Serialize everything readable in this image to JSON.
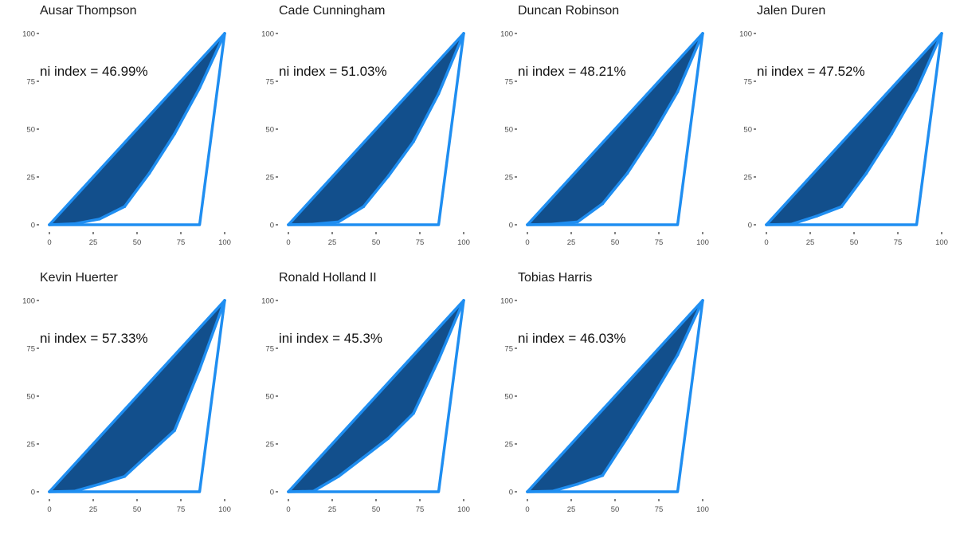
{
  "colors": {
    "line": "#1f8ef1",
    "fill": "#124f8c",
    "text": "#1a1a1a",
    "tick": "#4d4d4d"
  },
  "chart_data": [
    {
      "type": "area",
      "title": "Ausar Thompson",
      "annotation": "ni index = 46.99%",
      "x": [
        0,
        14.3,
        28.6,
        42.9,
        57.1,
        71.4,
        85.7,
        100
      ],
      "lorenz": [
        0,
        0.5,
        3,
        9.5,
        27,
        47.5,
        71.5,
        100
      ],
      "closure_x": [
        0,
        85.7,
        100
      ],
      "closure_y": [
        0,
        0,
        100
      ],
      "xlim": [
        0,
        100
      ],
      "ylim": [
        0,
        100
      ],
      "xticks": [
        "0",
        "25",
        "50",
        "75",
        "100"
      ],
      "yticks": [
        "0",
        "25",
        "50",
        "75",
        "100"
      ],
      "grid": false
    },
    {
      "type": "area",
      "title": "Cade Cunningham",
      "annotation": "ni index = 51.03%",
      "x": [
        0,
        14.3,
        28.6,
        42.9,
        57.1,
        71.4,
        85.7,
        100
      ],
      "lorenz": [
        0,
        0.3,
        1.5,
        9.5,
        25.5,
        43.5,
        68.5,
        100
      ],
      "closure_x": [
        0,
        85.7,
        100
      ],
      "closure_y": [
        0,
        0,
        100
      ],
      "xlim": [
        0,
        100
      ],
      "ylim": [
        0,
        100
      ],
      "xticks": [
        "0",
        "25",
        "50",
        "75",
        "100"
      ],
      "yticks": [
        "0",
        "25",
        "50",
        "75",
        "100"
      ],
      "grid": false
    },
    {
      "type": "area",
      "title": "Duncan Robinson",
      "annotation": "ni index = 48.21%",
      "x": [
        0,
        14.3,
        28.6,
        42.9,
        57.1,
        71.4,
        85.7,
        100
      ],
      "lorenz": [
        0,
        0.3,
        1.5,
        11,
        27,
        47,
        69.5,
        100
      ],
      "closure_x": [
        0,
        85.7,
        100
      ],
      "closure_y": [
        0,
        0,
        100
      ],
      "xlim": [
        0,
        100
      ],
      "ylim": [
        0,
        100
      ],
      "xticks": [
        "0",
        "25",
        "50",
        "75",
        "100"
      ],
      "yticks": [
        "0",
        "25",
        "50",
        "75",
        "100"
      ],
      "grid": false
    },
    {
      "type": "area",
      "title": "Jalen Duren",
      "annotation": "ni index = 47.52%",
      "x": [
        0,
        14.3,
        28.6,
        42.9,
        57.1,
        71.4,
        85.7,
        100
      ],
      "lorenz": [
        0,
        0.3,
        4.5,
        9.5,
        27,
        47.5,
        70.5,
        100
      ],
      "closure_x": [
        0,
        85.7,
        100
      ],
      "closure_y": [
        0,
        0,
        100
      ],
      "xlim": [
        0,
        100
      ],
      "ylim": [
        0,
        100
      ],
      "xticks": [
        "0",
        "25",
        "50",
        "75",
        "100"
      ],
      "yticks": [
        "0",
        "25",
        "50",
        "75",
        "100"
      ],
      "grid": false
    },
    {
      "type": "area",
      "title": "Kevin Huerter",
      "annotation": "ni index = 57.33%",
      "x": [
        0,
        14.3,
        28.6,
        42.9,
        57.1,
        71.4,
        85.7,
        100
      ],
      "lorenz": [
        0,
        0.3,
        4,
        8,
        20,
        32,
        64,
        100
      ],
      "closure_x": [
        0,
        85.7,
        100
      ],
      "closure_y": [
        0,
        0,
        100
      ],
      "xlim": [
        0,
        100
      ],
      "ylim": [
        0,
        100
      ],
      "xticks": [
        "0",
        "25",
        "50",
        "75",
        "100"
      ],
      "yticks": [
        "0",
        "25",
        "50",
        "75",
        "100"
      ],
      "grid": false
    },
    {
      "type": "area",
      "title": "Ronald Holland II",
      "annotation": "ini index = 45.3%",
      "x": [
        0,
        14.3,
        28.6,
        42.9,
        57.1,
        71.4,
        85.7,
        100
      ],
      "lorenz": [
        0,
        0.3,
        8,
        18,
        28,
        41,
        69,
        100
      ],
      "closure_x": [
        0,
        85.7,
        100
      ],
      "closure_y": [
        0,
        0,
        100
      ],
      "xlim": [
        0,
        100
      ],
      "ylim": [
        0,
        100
      ],
      "xticks": [
        "0",
        "25",
        "50",
        "75",
        "100"
      ],
      "yticks": [
        "0",
        "25",
        "50",
        "75",
        "100"
      ],
      "grid": false
    },
    {
      "type": "area",
      "title": "Tobias Harris",
      "annotation": "ni index = 46.03%",
      "x": [
        0,
        14.3,
        28.6,
        42.9,
        57.1,
        71.4,
        85.7,
        100
      ],
      "lorenz": [
        0,
        0.3,
        4,
        8.5,
        28.5,
        49.5,
        71.5,
        100
      ],
      "closure_x": [
        0,
        85.7,
        100
      ],
      "closure_y": [
        0,
        0,
        100
      ],
      "xlim": [
        0,
        100
      ],
      "ylim": [
        0,
        100
      ],
      "xticks": [
        "0",
        "25",
        "50",
        "75",
        "100"
      ],
      "yticks": [
        "0",
        "25",
        "50",
        "75",
        "100"
      ],
      "grid": false
    }
  ]
}
